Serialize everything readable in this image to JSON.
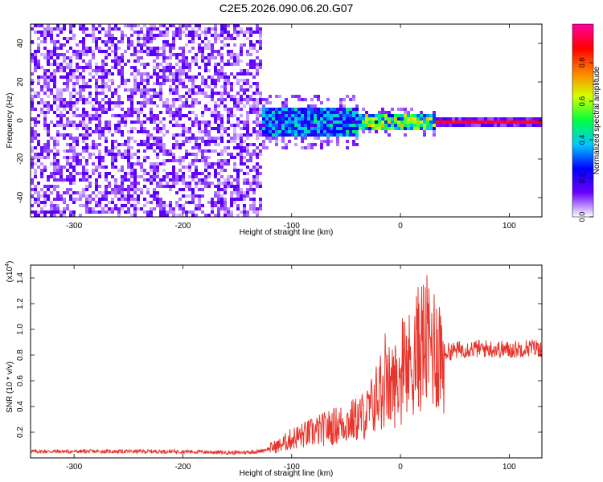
{
  "title": "C2E5.2026.090.06.20.G07",
  "chart_data": [
    {
      "type": "heatmap",
      "xlabel": "Height of straight line (km)",
      "ylabel": "Frequency (Hz)",
      "xlim": [
        -340,
        130
      ],
      "ylim": [
        -50,
        50
      ],
      "x_ticks": [
        -300,
        -200,
        -100,
        0,
        100
      ],
      "y_ticks": [
        -40,
        -20,
        0,
        20,
        40
      ],
      "colorbar": {
        "label": "Normalized spectral amplitude",
        "range": [
          0,
          1
        ],
        "ticks": [
          "0.0",
          "0.2",
          "0.4",
          "0.6",
          "0.8"
        ],
        "colors": [
          "#ffffff",
          "#6a00ff",
          "#0000ff",
          "#00c8ff",
          "#00ff40",
          "#d4ff00",
          "#ff8000",
          "#ff0000",
          "#ff00a0"
        ]
      },
      "description_regions": [
        {
          "x": [
            -340,
            -130
          ],
          "freq": [
            -50,
            50
          ],
          "level": 0.12
        },
        {
          "x": [
            -130,
            -40
          ],
          "freq": [
            -8,
            8
          ],
          "level": 0.3
        },
        {
          "x": [
            -40,
            30
          ],
          "freq": [
            -3,
            3
          ],
          "level": 0.6
        },
        {
          "x": [
            30,
            130
          ],
          "freq": [
            -1,
            1
          ],
          "level": 0.9
        }
      ]
    },
    {
      "type": "line",
      "xlabel": "Height of straight line (km)",
      "ylabel": "SNR (10 * v/v)",
      "y_exponent": "4",
      "xlim": [
        -340,
        130
      ],
      "ylim": [
        0,
        1.5
      ],
      "x_ticks": [
        -300,
        -200,
        -100,
        0,
        100
      ],
      "y_ticks": [
        "0.2",
        "0.4",
        "0.6",
        "0.8",
        "1.0",
        "1.2",
        "1.4"
      ],
      "color": "#e8352c",
      "series": [
        {
          "x": [
            -340,
            -300,
            -250,
            -200,
            -150,
            -130,
            -110,
            -100,
            -80,
            -60,
            -40,
            -30,
            -20,
            -10,
            0,
            10,
            20,
            30,
            40,
            60,
            80,
            100,
            120,
            130
          ],
          "values": [
            0.05,
            0.05,
            0.05,
            0.05,
            0.04,
            0.05,
            0.1,
            0.15,
            0.2,
            0.25,
            0.3,
            0.35,
            0.5,
            0.55,
            0.6,
            0.75,
            0.9,
            0.88,
            0.82,
            0.85,
            0.85,
            0.84,
            0.86,
            0.85
          ]
        }
      ]
    }
  ]
}
